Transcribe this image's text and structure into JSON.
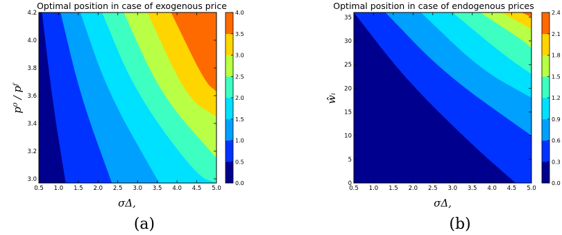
{
  "chart_data": [
    {
      "type": "heatmap",
      "subtype": "filled-contour",
      "title": "Optimal position in case of exogenous price",
      "xlabel": "σΔ,",
      "ylabel": "p⁰ / pᶠ",
      "caption": "(a)",
      "xlim": [
        0.5,
        5.0
      ],
      "ylim": [
        2.97,
        4.2
      ],
      "x_ticks": [
        "0.5",
        "1.0",
        "1.5",
        "2.0",
        "2.5",
        "3.0",
        "3.5",
        "4.0",
        "4.5",
        "5.0"
      ],
      "y_ticks": [
        "3.0",
        "3.2",
        "3.4",
        "3.6",
        "3.8",
        "4.0",
        "4.2"
      ],
      "levels": [
        0.0,
        0.5,
        1.0,
        1.5,
        2.0,
        2.5,
        3.0,
        3.5,
        4.0
      ],
      "level_labels": [
        "0.0",
        "0.5",
        "1.0",
        "1.5",
        "2.0",
        "2.5",
        "3.0",
        "3.5",
        "4.0"
      ],
      "contour_boundaries": [
        {
          "level": 0.5,
          "points": [
            [
              0.58,
              4.2
            ],
            [
              0.85,
              3.55
            ],
            [
              1.18,
              2.97
            ]
          ]
        },
        {
          "level": 1.0,
          "points": [
            [
              1.05,
              4.2
            ],
            [
              1.55,
              3.6
            ],
            [
              2.35,
              2.97
            ]
          ]
        },
        {
          "level": 1.5,
          "points": [
            [
              1.55,
              4.2
            ],
            [
              2.25,
              3.62
            ],
            [
              3.55,
              2.97
            ]
          ]
        },
        {
          "level": 2.0,
          "points": [
            [
              2.1,
              4.2
            ],
            [
              2.95,
              3.62
            ],
            [
              4.5,
              3.02
            ],
            [
              5.0,
              2.97
            ]
          ]
        },
        {
          "level": 2.5,
          "points": [
            [
              2.65,
              4.2
            ],
            [
              3.6,
              3.6
            ],
            [
              5.0,
              3.15
            ]
          ]
        },
        {
          "level": 3.0,
          "points": [
            [
              3.25,
              4.2
            ],
            [
              4.25,
              3.58
            ],
            [
              5.0,
              3.45
            ]
          ]
        },
        {
          "level": 3.5,
          "points": [
            [
              3.85,
              4.2
            ],
            [
              4.7,
              3.7
            ],
            [
              5.0,
              3.63
            ]
          ]
        }
      ],
      "colors": [
        "#00008f",
        "#0033ff",
        "#00a0ff",
        "#00e0ff",
        "#3dffc2",
        "#b9ff45",
        "#ffd500",
        "#ff6a00",
        "#c30000"
      ]
    },
    {
      "type": "heatmap",
      "subtype": "filled-contour",
      "title": "Optimal position in case of endogenous prices",
      "xlabel": "σΔ,",
      "ylabel": "ŵᵢ",
      "caption": "(b)",
      "xlim": [
        0.5,
        5.0
      ],
      "ylim": [
        0,
        36
      ],
      "x_ticks": [
        "0.5",
        "1.0",
        "1.5",
        "2.0",
        "2.5",
        "3.0",
        "3.5",
        "4.0",
        "4.5",
        "5.0"
      ],
      "y_ticks": [
        "0",
        "5",
        "10",
        "15",
        "20",
        "25",
        "30",
        "35"
      ],
      "levels": [
        0.0,
        0.3,
        0.6,
        0.9,
        1.2,
        1.5,
        1.8,
        2.1,
        2.4
      ],
      "level_labels": [
        "0.0",
        "0.3",
        "0.6",
        "0.9",
        "1.2",
        "1.5",
        "1.8",
        "2.1",
        "2.4"
      ],
      "contour_boundaries": [
        {
          "level": 0.3,
          "points": [
            [
              0.5,
              36
            ],
            [
              1.8,
              22
            ],
            [
              3.5,
              8
            ],
            [
              4.6,
              0
            ]
          ]
        },
        {
          "level": 0.6,
          "points": [
            [
              1.3,
              36
            ],
            [
              2.8,
              23
            ],
            [
              5.0,
              10
            ]
          ]
        },
        {
          "level": 0.9,
          "points": [
            [
              2.2,
              36
            ],
            [
              3.7,
              24
            ],
            [
              5.0,
              18
            ]
          ]
        },
        {
          "level": 1.2,
          "points": [
            [
              3.0,
              36
            ],
            [
              4.3,
              27
            ],
            [
              5.0,
              23
            ]
          ]
        },
        {
          "level": 1.5,
          "points": [
            [
              3.7,
              36
            ],
            [
              4.8,
              30
            ],
            [
              5.0,
              28.5
            ]
          ]
        },
        {
          "level": 1.8,
          "points": [
            [
              4.25,
              36
            ],
            [
              5.0,
              32.5
            ]
          ]
        },
        {
          "level": 2.1,
          "points": [
            [
              4.75,
              36
            ],
            [
              5.0,
              35
            ]
          ]
        }
      ],
      "colors": [
        "#00008f",
        "#0033ff",
        "#00a0ff",
        "#00e0ff",
        "#3dffc2",
        "#b9ff45",
        "#ffd500",
        "#ff6a00",
        "#c30000"
      ]
    }
  ]
}
